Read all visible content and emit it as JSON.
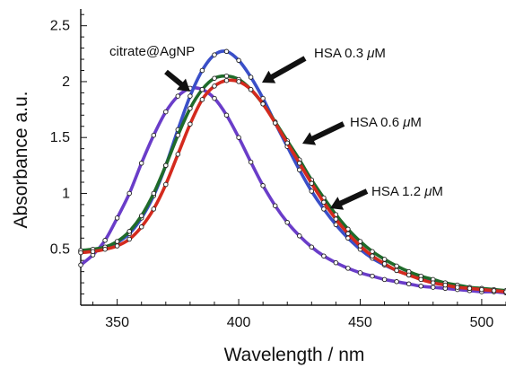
{
  "chart_data": {
    "type": "line",
    "title": "",
    "xlabel": "Wavelength / nm",
    "ylabel": "Absorbance a.u.",
    "xlim": [
      335,
      510
    ],
    "ylim": [
      0.0,
      2.65
    ],
    "xticks": [
      350,
      400,
      450,
      500
    ],
    "yticks": [
      0.5,
      1,
      1.5,
      2,
      2.5
    ],
    "xtick_labels": [
      "350",
      "400",
      "450",
      "500"
    ],
    "ytick_labels": [
      "0.5",
      "1",
      "1.5",
      "2",
      "2.5"
    ],
    "grid": false,
    "legend": "none",
    "markers": "small white circles on each curve",
    "series": [
      {
        "color": "#6a3dc9",
        "x": [
          335,
          340,
          345,
          350,
          355,
          360,
          365,
          370,
          375,
          380,
          385,
          390,
          395,
          400,
          405,
          410,
          415,
          420,
          425,
          430,
          435,
          440,
          445,
          450,
          455,
          460,
          465,
          470,
          475,
          480,
          485,
          490,
          495,
          500,
          505,
          510
        ],
        "y": [
          0.36,
          0.45,
          0.58,
          0.78,
          1.0,
          1.27,
          1.52,
          1.73,
          1.87,
          1.94,
          1.93,
          1.85,
          1.7,
          1.5,
          1.28,
          1.07,
          0.89,
          0.74,
          0.62,
          0.52,
          0.44,
          0.38,
          0.33,
          0.29,
          0.26,
          0.23,
          0.21,
          0.19,
          0.17,
          0.16,
          0.15,
          0.14,
          0.13,
          0.12,
          0.12,
          0.11
        ]
      },
      {
        "color": "#3a4fc8",
        "x": [
          335,
          340,
          345,
          350,
          355,
          360,
          365,
          370,
          375,
          380,
          385,
          390,
          395,
          400,
          405,
          410,
          415,
          420,
          425,
          430,
          435,
          440,
          445,
          450,
          455,
          460,
          465,
          470,
          475,
          480,
          485,
          490,
          495,
          500,
          505,
          510
        ],
        "y": [
          0.48,
          0.49,
          0.51,
          0.56,
          0.64,
          0.78,
          0.98,
          1.25,
          1.57,
          1.87,
          2.1,
          2.24,
          2.27,
          2.19,
          2.04,
          1.85,
          1.63,
          1.42,
          1.21,
          1.02,
          0.86,
          0.72,
          0.6,
          0.5,
          0.42,
          0.36,
          0.31,
          0.27,
          0.24,
          0.21,
          0.19,
          0.17,
          0.15,
          0.14,
          0.13,
          0.12
        ]
      },
      {
        "color": "#1f6b2a",
        "x": [
          335,
          340,
          345,
          350,
          355,
          360,
          365,
          370,
          375,
          380,
          385,
          390,
          395,
          400,
          405,
          410,
          415,
          420,
          425,
          430,
          435,
          440,
          445,
          450,
          455,
          460,
          465,
          470,
          475,
          480,
          485,
          490,
          495,
          500,
          505,
          510
        ],
        "y": [
          0.49,
          0.5,
          0.52,
          0.57,
          0.66,
          0.8,
          1.0,
          1.25,
          1.52,
          1.76,
          1.93,
          2.03,
          2.05,
          2.02,
          1.93,
          1.8,
          1.64,
          1.47,
          1.3,
          1.12,
          0.96,
          0.81,
          0.68,
          0.57,
          0.48,
          0.41,
          0.35,
          0.3,
          0.26,
          0.23,
          0.2,
          0.18,
          0.16,
          0.15,
          0.14,
          0.13
        ]
      },
      {
        "color": "#d42a1e",
        "x": [
          335,
          340,
          345,
          350,
          355,
          360,
          365,
          370,
          375,
          380,
          385,
          390,
          395,
          400,
          405,
          410,
          415,
          420,
          425,
          430,
          435,
          440,
          445,
          450,
          455,
          460,
          465,
          470,
          475,
          480,
          485,
          490,
          495,
          500,
          505,
          510
        ],
        "y": [
          0.47,
          0.48,
          0.5,
          0.53,
          0.59,
          0.7,
          0.86,
          1.08,
          1.35,
          1.62,
          1.84,
          1.96,
          2.01,
          2.0,
          1.93,
          1.8,
          1.63,
          1.45,
          1.27,
          1.09,
          0.92,
          0.77,
          0.64,
          0.53,
          0.44,
          0.37,
          0.31,
          0.27,
          0.23,
          0.2,
          0.18,
          0.16,
          0.15,
          0.14,
          0.13,
          0.12
        ]
      }
    ],
    "annotations": [
      {
        "text": "citrate@AgNP"
      },
      {
        "text": "HSA 0.3 ",
        "mu": "μ",
        "unit": "M"
      },
      {
        "text": "HSA 0.6 ",
        "mu": "μ",
        "unit": "M"
      },
      {
        "text": "HSA 1.2 ",
        "mu": "μ",
        "unit": "M"
      }
    ]
  }
}
